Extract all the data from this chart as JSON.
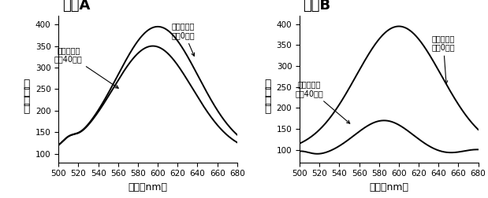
{
  "title_A": "体系A",
  "title_B": "体系B",
  "xlabel": "波长（nm）",
  "ylabel_chars": [
    "荧",
    "光",
    "强",
    "度"
  ],
  "xlim": [
    500,
    680
  ],
  "ylim_A": [
    80,
    420
  ],
  "ylim_B": [
    70,
    420
  ],
  "yticks": [
    100,
    150,
    200,
    250,
    300,
    350,
    400
  ],
  "xticks": [
    500,
    520,
    540,
    560,
    580,
    600,
    620,
    640,
    660,
    680
  ],
  "label_0min": "氧化石墨烯\n作用0分钟",
  "label_40min": "氧化石墨烯\n作用40分钟",
  "line_color": "#000000",
  "bg_color": "#ffffff"
}
